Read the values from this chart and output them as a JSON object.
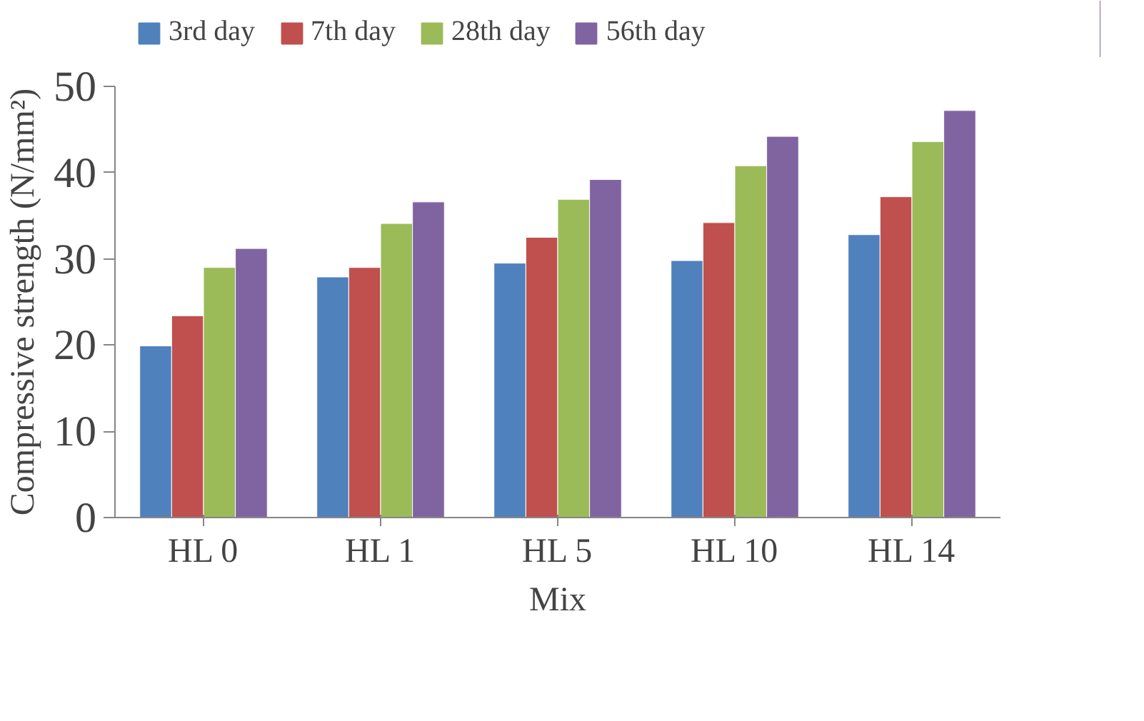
{
  "chart_data": {
    "type": "bar",
    "xlabel": "Mix",
    "ylabel": "Compressive strength (N/mm²)",
    "categories": [
      "HL 0",
      "HL 1",
      "HL 5",
      "HL 10",
      "HL 14"
    ],
    "series": [
      {
        "name": "3rd day",
        "color": "#4f81bd",
        "values": [
          19.9,
          27.9,
          29.5,
          29.8,
          32.8
        ]
      },
      {
        "name": "7th day",
        "color": "#c0504d",
        "values": [
          23.4,
          29.0,
          32.5,
          34.2,
          37.2
        ]
      },
      {
        "name": "28th day",
        "color": "#9bbb59",
        "values": [
          29.0,
          34.1,
          36.9,
          40.8,
          43.6
        ]
      },
      {
        "name": "56th day",
        "color": "#8064a2",
        "values": [
          31.2,
          36.6,
          39.2,
          44.2,
          47.2
        ]
      }
    ],
    "ylim": [
      0,
      50
    ],
    "yticks": [
      0,
      10,
      20,
      30,
      40,
      50
    ],
    "grid": false,
    "legend": "top"
  }
}
